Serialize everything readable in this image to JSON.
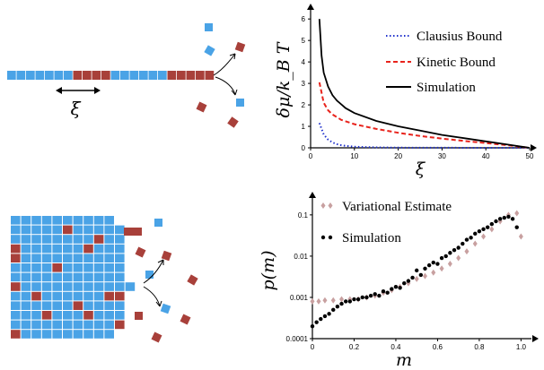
{
  "colors": {
    "blue": "#4aa3e6",
    "red": "#a8403a",
    "black": "#000000",
    "clausius": "#2233cc",
    "kinetic": "#e8231c",
    "variational": "#c8a0a0"
  },
  "illustrations": {
    "top": {
      "spacing_label": "ξ"
    },
    "bottom": {}
  },
  "chart_data": [
    {
      "type": "line",
      "ylabel": "δμ/k_B T",
      "xlabel": "ξ",
      "xlim": [
        0,
        50
      ],
      "ylim": [
        0,
        6.3
      ],
      "xticks": [
        "0",
        "10",
        "20",
        "30",
        "40",
        "50"
      ],
      "yticks": [
        "0",
        "1",
        "2",
        "3",
        "4",
        "5",
        "6"
      ],
      "legend_position": "top-right",
      "series": [
        {
          "name": "Clausius Bound",
          "style": "dotted",
          "color": "#2233cc",
          "x": [
            2,
            3,
            4,
            5,
            6,
            7,
            8,
            10,
            15,
            20,
            30,
            40,
            50
          ],
          "y": [
            1.15,
            0.62,
            0.38,
            0.25,
            0.17,
            0.12,
            0.09,
            0.05,
            0.02,
            0.01,
            0.005,
            0.002,
            0
          ]
        },
        {
          "name": "Kinetic Bound",
          "style": "dashed",
          "color": "#e8231c",
          "x": [
            2,
            3,
            4,
            5,
            7,
            10,
            15,
            20,
            25,
            30,
            35,
            40,
            45,
            50
          ],
          "y": [
            3.05,
            2.1,
            1.75,
            1.55,
            1.3,
            1.1,
            0.88,
            0.7,
            0.55,
            0.43,
            0.32,
            0.22,
            0.12,
            0
          ]
        },
        {
          "name": "Simulation",
          "style": "solid",
          "color": "#000000",
          "x": [
            2,
            2.5,
            3,
            4,
            5,
            6,
            8,
            10,
            15,
            20,
            25,
            30,
            35,
            40,
            45,
            50
          ],
          "y": [
            6.0,
            4.3,
            3.5,
            2.85,
            2.45,
            2.2,
            1.85,
            1.62,
            1.25,
            1.0,
            0.8,
            0.6,
            0.45,
            0.3,
            0.15,
            0
          ]
        }
      ]
    },
    {
      "type": "scatter",
      "ylabel": "p(m)",
      "xlabel": "m",
      "xlim": [
        0,
        1.05
      ],
      "ylim": [
        0.0001,
        0.2
      ],
      "yscale": "log",
      "xticks": [
        "0",
        "0.2",
        "0.4",
        "0.6",
        "0.8",
        "1.0"
      ],
      "yticks": [
        "0.0001",
        "0.001",
        "0.01",
        "0.1"
      ],
      "legend_position": "top-left",
      "series": [
        {
          "name": "Variational Estimate",
          "marker": "diamond",
          "color": "#c8a0a0",
          "x": [
            0.0,
            0.03,
            0.06,
            0.1,
            0.14,
            0.18,
            0.22,
            0.26,
            0.3,
            0.34,
            0.38,
            0.42,
            0.46,
            0.5,
            0.54,
            0.58,
            0.62,
            0.66,
            0.7,
            0.74,
            0.78,
            0.82,
            0.86,
            0.9,
            0.94,
            0.98,
            1.0
          ],
          "y": [
            0.0008,
            0.0008,
            0.00085,
            0.00085,
            0.0009,
            0.0009,
            0.0009,
            0.001,
            0.0011,
            0.0013,
            0.0015,
            0.0018,
            0.0022,
            0.0028,
            0.0033,
            0.004,
            0.005,
            0.0065,
            0.009,
            0.013,
            0.02,
            0.03,
            0.045,
            0.07,
            0.1,
            0.11,
            0.03
          ]
        },
        {
          "name": "Simulation",
          "marker": "dot",
          "color": "#000000",
          "x": [
            0.0,
            0.02,
            0.04,
            0.06,
            0.08,
            0.1,
            0.12,
            0.14,
            0.16,
            0.18,
            0.2,
            0.22,
            0.24,
            0.26,
            0.28,
            0.3,
            0.32,
            0.34,
            0.36,
            0.38,
            0.4,
            0.42,
            0.44,
            0.46,
            0.48,
            0.5,
            0.52,
            0.54,
            0.56,
            0.58,
            0.6,
            0.62,
            0.64,
            0.66,
            0.68,
            0.7,
            0.72,
            0.74,
            0.76,
            0.78,
            0.8,
            0.82,
            0.84,
            0.86,
            0.88,
            0.9,
            0.92,
            0.94,
            0.96,
            0.98
          ],
          "y": [
            0.0002,
            0.00025,
            0.0003,
            0.00035,
            0.0004,
            0.0005,
            0.0006,
            0.0007,
            0.0008,
            0.0008,
            0.0009,
            0.0009,
            0.001,
            0.001,
            0.0011,
            0.0012,
            0.0011,
            0.0014,
            0.0013,
            0.0016,
            0.0018,
            0.0017,
            0.0022,
            0.0025,
            0.003,
            0.0045,
            0.0035,
            0.005,
            0.006,
            0.007,
            0.0065,
            0.009,
            0.01,
            0.012,
            0.014,
            0.016,
            0.02,
            0.025,
            0.028,
            0.035,
            0.04,
            0.045,
            0.05,
            0.06,
            0.07,
            0.08,
            0.085,
            0.09,
            0.08,
            0.05
          ]
        }
      ]
    }
  ]
}
